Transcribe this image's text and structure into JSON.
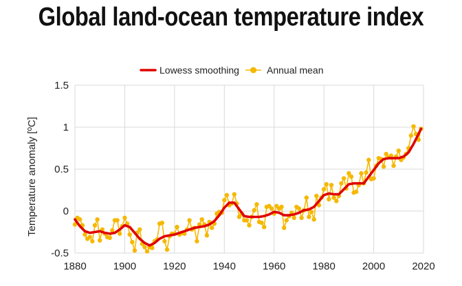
{
  "title": "Global land-ocean temperature index",
  "colors": {
    "smooth": "#e00000",
    "annual": "#f5b800",
    "grid": "#d9d9d9"
  },
  "chart_data": {
    "type": "line",
    "title": "Global land-ocean temperature index",
    "xlabel": "",
    "ylabel": "Temperature anomaly [ºC]",
    "xlim": [
      1880,
      2020
    ],
    "ylim": [
      -0.5,
      1.5
    ],
    "xticks": [
      "1880",
      "1900",
      "1920",
      "1940",
      "1960",
      "1980",
      "2000",
      "2020"
    ],
    "yticks": [
      "1.5",
      "1",
      "0.5",
      "0",
      "-0.5"
    ],
    "grid": true,
    "legend_position": "top",
    "legend": [
      "Lowess smoothing",
      "Annual mean"
    ],
    "series": [
      {
        "name": "Annual mean",
        "x": [
          1880,
          1881,
          1882,
          1883,
          1884,
          1885,
          1886,
          1887,
          1888,
          1889,
          1890,
          1891,
          1892,
          1893,
          1894,
          1895,
          1896,
          1897,
          1898,
          1899,
          1900,
          1901,
          1902,
          1903,
          1904,
          1905,
          1906,
          1907,
          1908,
          1909,
          1910,
          1911,
          1912,
          1913,
          1914,
          1915,
          1916,
          1917,
          1918,
          1919,
          1920,
          1921,
          1922,
          1923,
          1924,
          1925,
          1926,
          1927,
          1928,
          1929,
          1930,
          1931,
          1932,
          1933,
          1934,
          1935,
          1936,
          1937,
          1938,
          1939,
          1940,
          1941,
          1942,
          1943,
          1944,
          1945,
          1946,
          1947,
          1948,
          1949,
          1950,
          1951,
          1952,
          1953,
          1954,
          1955,
          1956,
          1957,
          1958,
          1959,
          1960,
          1961,
          1962,
          1963,
          1964,
          1965,
          1966,
          1967,
          1968,
          1969,
          1970,
          1971,
          1972,
          1973,
          1974,
          1975,
          1976,
          1977,
          1978,
          1979,
          1980,
          1981,
          1982,
          1983,
          1984,
          1985,
          1986,
          1987,
          1988,
          1989,
          1990,
          1991,
          1992,
          1993,
          1994,
          1995,
          1996,
          1997,
          1998,
          1999,
          2000,
          2001,
          2002,
          2003,
          2004,
          2005,
          2006,
          2007,
          2008,
          2009,
          2010,
          2011,
          2012,
          2013,
          2014,
          2015,
          2016,
          2017,
          2018,
          2019
        ],
        "values": [
          -0.16,
          -0.08,
          -0.1,
          -0.17,
          -0.28,
          -0.33,
          -0.31,
          -0.36,
          -0.17,
          -0.1,
          -0.35,
          -0.22,
          -0.27,
          -0.31,
          -0.32,
          -0.23,
          -0.11,
          -0.11,
          -0.27,
          -0.18,
          -0.08,
          -0.15,
          -0.28,
          -0.37,
          -0.47,
          -0.26,
          -0.22,
          -0.39,
          -0.43,
          -0.48,
          -0.43,
          -0.44,
          -0.36,
          -0.34,
          -0.15,
          -0.14,
          -0.36,
          -0.46,
          -0.3,
          -0.27,
          -0.27,
          -0.19,
          -0.28,
          -0.26,
          -0.27,
          -0.22,
          -0.11,
          -0.22,
          -0.2,
          -0.36,
          -0.16,
          -0.1,
          -0.16,
          -0.29,
          -0.13,
          -0.2,
          -0.15,
          -0.03,
          -0.01,
          -0.02,
          0.13,
          0.19,
          0.07,
          0.09,
          0.2,
          0.09,
          -0.07,
          -0.03,
          -0.11,
          -0.11,
          -0.17,
          -0.07,
          0.01,
          0.08,
          -0.13,
          -0.14,
          -0.19,
          0.05,
          0.06,
          0.03,
          -0.03,
          0.06,
          0.03,
          0.05,
          -0.2,
          -0.11,
          -0.06,
          -0.02,
          -0.08,
          0.05,
          0.03,
          -0.08,
          0.01,
          0.16,
          -0.07,
          -0.01,
          -0.1,
          0.18,
          0.07,
          0.16,
          0.26,
          0.32,
          0.14,
          0.31,
          0.16,
          0.12,
          0.18,
          0.33,
          0.39,
          0.27,
          0.45,
          0.41,
          0.22,
          0.23,
          0.31,
          0.45,
          0.33,
          0.46,
          0.61,
          0.38,
          0.39,
          0.54,
          0.63,
          0.62,
          0.53,
          0.68,
          0.64,
          0.66,
          0.54,
          0.65,
          0.72,
          0.61,
          0.64,
          0.68,
          0.75,
          0.9,
          1.01,
          0.92,
          0.85,
          0.98
        ]
      },
      {
        "name": "Lowess smoothing",
        "x": [
          1880,
          1882,
          1884,
          1886,
          1888,
          1890,
          1892,
          1894,
          1896,
          1898,
          1900,
          1902,
          1904,
          1906,
          1908,
          1910,
          1912,
          1914,
          1916,
          1918,
          1920,
          1922,
          1924,
          1926,
          1928,
          1930,
          1932,
          1934,
          1936,
          1938,
          1940,
          1942,
          1944,
          1946,
          1948,
          1950,
          1952,
          1954,
          1956,
          1958,
          1960,
          1962,
          1964,
          1966,
          1968,
          1970,
          1972,
          1974,
          1976,
          1978,
          1980,
          1982,
          1984,
          1986,
          1988,
          1990,
          1992,
          1994,
          1996,
          1998,
          2000,
          2002,
          2004,
          2006,
          2008,
          2010,
          2012,
          2014,
          2016,
          2018,
          2019
        ],
        "values": [
          -0.1,
          -0.18,
          -0.24,
          -0.26,
          -0.25,
          -0.24,
          -0.26,
          -0.27,
          -0.26,
          -0.22,
          -0.17,
          -0.19,
          -0.26,
          -0.33,
          -0.38,
          -0.41,
          -0.38,
          -0.33,
          -0.3,
          -0.29,
          -0.28,
          -0.26,
          -0.24,
          -0.22,
          -0.2,
          -0.19,
          -0.18,
          -0.16,
          -0.12,
          -0.05,
          0.04,
          0.1,
          0.1,
          0.02,
          -0.06,
          -0.07,
          -0.07,
          -0.07,
          -0.06,
          -0.04,
          -0.01,
          -0.02,
          -0.05,
          -0.05,
          -0.04,
          -0.02,
          0.01,
          0.02,
          0.05,
          0.12,
          0.19,
          0.21,
          0.2,
          0.2,
          0.26,
          0.32,
          0.33,
          0.33,
          0.33,
          0.41,
          0.49,
          0.57,
          0.62,
          0.63,
          0.63,
          0.63,
          0.65,
          0.7,
          0.8,
          0.92,
          0.98
        ]
      }
    ]
  }
}
